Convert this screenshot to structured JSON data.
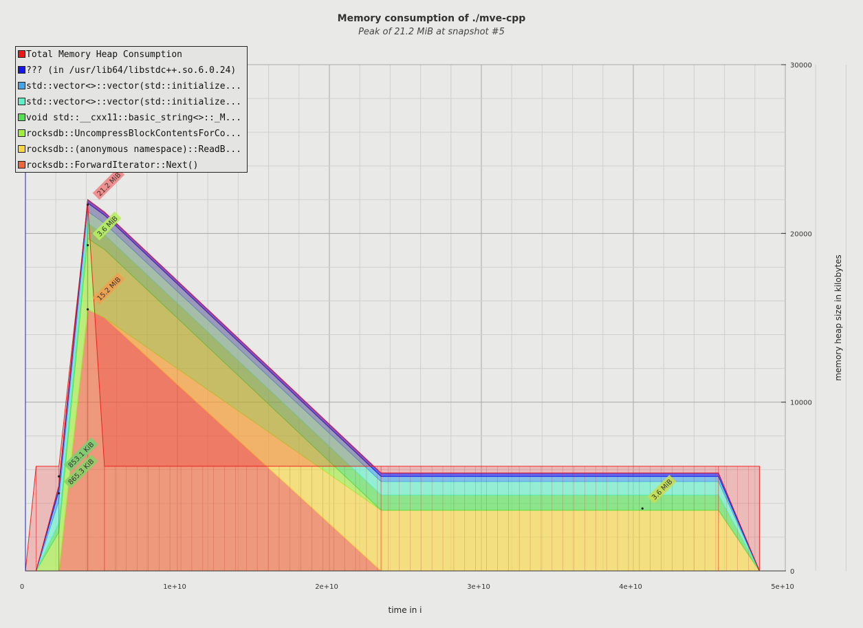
{
  "chart_data": {
    "type": "area",
    "title": "Memory consumption of ./mve-cpp",
    "subtitle": "Peak of 21.2 MiB at snapshot #5",
    "xlabel": "time in i",
    "ylabel": "memory heap size in kilobytes",
    "xlim": [
      0,
      50000000000
    ],
    "ylim": [
      0,
      30000
    ],
    "x_ticks": [
      {
        "value": 0,
        "label": "0"
      },
      {
        "value": 10000000000,
        "label": "1e+10"
      },
      {
        "value": 20000000000,
        "label": "2e+10"
      },
      {
        "value": 30000000000,
        "label": "3e+10"
      },
      {
        "value": 40000000000,
        "label": "4e+10"
      },
      {
        "value": 50000000000,
        "label": "5e+10"
      }
    ],
    "y_ticks": [
      {
        "value": 0,
        "label": "0"
      },
      {
        "value": 10000,
        "label": "10000"
      },
      {
        "value": 20000,
        "label": "20000"
      },
      {
        "value": 30000,
        "label": "30000"
      }
    ],
    "y_axis_side": "right",
    "grid": true,
    "legend_placement": "top-left",
    "x": [
      0,
      700000000,
      2200000000,
      4100000000,
      5200000000,
      23400000000,
      45600000000,
      48300000000
    ],
    "series": [
      {
        "name": "rocksdb::ForwardIterator::Next()",
        "color": "#f0653a",
        "values": [
          0,
          0,
          0,
          15500,
          15000,
          0,
          0,
          0
        ]
      },
      {
        "name": "rocksdb::(anonymous namespace)::ReadB...",
        "color": "#f8d741",
        "values": [
          0,
          0,
          0,
          0,
          0,
          3600,
          3600,
          0
        ]
      },
      {
        "name": "rocksdb::UncompressBlockContentsForCo...",
        "color": "#a2ee3c",
        "values": [
          0,
          0,
          2300,
          4200,
          4050,
          0,
          0,
          0
        ]
      },
      {
        "name": "void std::__cxx11::basic_string<>::_M...",
        "color": "#52e052",
        "values": [
          0,
          0,
          550,
          900,
          870,
          900,
          900,
          0
        ]
      },
      {
        "name": "std::vector<>::vector(std::initialize...",
        "color": "#5ef0c6",
        "values": [
          0,
          0,
          1300,
          700,
          680,
          800,
          800,
          0
        ]
      },
      {
        "name": "std::vector<>::vector(std::initialize...",
        "color": "#45a4e8",
        "values": [
          0,
          0,
          600,
          500,
          480,
          300,
          300,
          0
        ]
      },
      {
        "name": "??? (in /usr/lib64/libstdc++.so.6.0.24)",
        "color": "#1515ee",
        "values": [
          0,
          0,
          300,
          200,
          190,
          200,
          200,
          0
        ]
      },
      {
        "name": "Total Memory Heap Consumption",
        "color": "#ee1515",
        "values": [
          0,
          6200,
          6200,
          21700,
          6200,
          6200,
          6200,
          6200
        ]
      }
    ],
    "annotations": [
      {
        "text": "21.2 MiB",
        "x": 4100000000,
        "y": 21700,
        "color": "#ef8585"
      },
      {
        "text": "3.6 MiB",
        "x": 4100000000,
        "y": 19300,
        "color": "#b5ee5e"
      },
      {
        "text": "15.2 MiB",
        "x": 4100000000,
        "y": 15500,
        "color": "#eea050"
      },
      {
        "text": "853.1 KiB",
        "x": 2200000000,
        "y": 5600,
        "color": "#78d070"
      },
      {
        "text": "865.3 KiB",
        "x": 2200000000,
        "y": 4600,
        "color": "#8ad066"
      },
      {
        "text": "3.6 MiB",
        "x": 40600000000,
        "y": 3700,
        "color": "#c8dc50"
      }
    ]
  }
}
